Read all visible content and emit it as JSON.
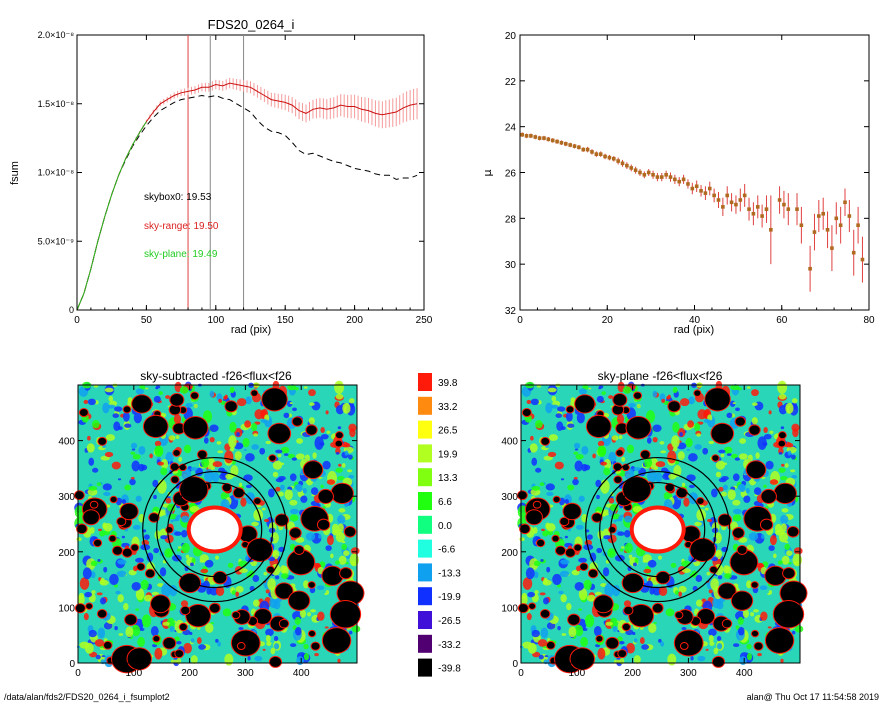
{
  "footer": {
    "path": "/data/alan/fds2/FDS20_0264_i_fsumplot2",
    "stamp": "alan@  Thu Oct 17 11:54:58 2019"
  },
  "colors": {
    "black_profile": "#000000",
    "red_profile": "#cc1111",
    "red_errorbar": "#f59a9a",
    "green_profile": "#22bb22",
    "mu_point": "#b06a20",
    "vertical_red": "#e04040",
    "vertical_gray": "#888888"
  },
  "chart_data": [
    {
      "id": "fsum",
      "type": "line",
      "title": "FDS20_0264_i",
      "xlabel": "rad (pix)",
      "ylabel": "fsum",
      "xlim": [
        0,
        250
      ],
      "ylim": [
        0,
        2e-08
      ],
      "xticks": [
        0,
        50,
        100,
        150,
        200,
        250
      ],
      "xtick_labels": [
        "0",
        "50",
        "100",
        "150",
        "200",
        "250"
      ],
      "yticks": [
        0,
        5e-09,
        1e-08,
        1.5e-08,
        2e-08
      ],
      "ytick_labels": [
        "0",
        "5.0×10⁻⁹",
        "1.0×10⁻⁸",
        "1.5×10⁻⁸",
        "2.0×10⁻⁸"
      ],
      "vlines": [
        {
          "x": 80,
          "color": "#e04040"
        },
        {
          "x": 96,
          "color": "#888888"
        },
        {
          "x": 120,
          "color": "#888888"
        }
      ],
      "annotations": [
        {
          "text": "skybox0: 19.53",
          "color": "#000000"
        },
        {
          "text": "sky-range: 19.50",
          "color": "#dd2222"
        },
        {
          "text": "sky-plane: 19.49",
          "color": "#22cc22"
        }
      ],
      "series": [
        {
          "style": "dashed",
          "color": "#000000",
          "x": [
            0,
            5,
            10,
            15,
            20,
            25,
            30,
            35,
            40,
            45,
            50,
            55,
            60,
            65,
            70,
            75,
            80,
            85,
            90,
            95,
            100,
            105,
            110,
            115,
            120,
            125,
            130,
            135,
            140,
            145,
            150,
            155,
            160,
            165,
            170,
            175,
            180,
            185,
            190,
            195,
            200,
            205,
            210,
            215,
            220,
            225,
            230,
            235,
            240,
            245
          ],
          "y": [
            0,
            1.2e-09,
            3e-09,
            5e-09,
            6.8e-09,
            8.4e-09,
            9.8e-09,
            1.09e-08,
            1.19e-08,
            1.27e-08,
            1.34e-08,
            1.4e-08,
            1.45e-08,
            1.48e-08,
            1.51e-08,
            1.53e-08,
            1.54e-08,
            1.55e-08,
            1.56e-08,
            1.55e-08,
            1.56e-08,
            1.54e-08,
            1.53e-08,
            1.5e-08,
            1.47e-08,
            1.44e-08,
            1.38e-08,
            1.33e-08,
            1.3e-08,
            1.29e-08,
            1.27e-08,
            1.22e-08,
            1.16e-08,
            1.13e-08,
            1.14e-08,
            1.12e-08,
            1.1e-08,
            1.08e-08,
            1.07e-08,
            1.05e-08,
            1.03e-08,
            1.02e-08,
            1.01e-08,
            9.9e-09,
            9.8e-09,
            9.8e-09,
            9.5e-09,
            9.6e-09,
            9.6e-09,
            9.8e-09
          ]
        },
        {
          "style": "solid",
          "color": "#cc1111",
          "error": true,
          "x": [
            0,
            5,
            10,
            15,
            20,
            25,
            30,
            35,
            40,
            45,
            50,
            55,
            60,
            65,
            70,
            75,
            80,
            85,
            90,
            95,
            100,
            105,
            110,
            115,
            120,
            125,
            130,
            135,
            140,
            145,
            150,
            155,
            160,
            165,
            170,
            175,
            180,
            185,
            190,
            195,
            200,
            205,
            210,
            215,
            220,
            225,
            230,
            235,
            240,
            245
          ],
          "y": [
            0,
            1.2e-09,
            3e-09,
            5e-09,
            6.8e-09,
            8.4e-09,
            9.8e-09,
            1.1e-08,
            1.2e-08,
            1.29e-08,
            1.37e-08,
            1.44e-08,
            1.5e-08,
            1.53e-08,
            1.56e-08,
            1.58e-08,
            1.59e-08,
            1.6e-08,
            1.62e-08,
            1.62e-08,
            1.64e-08,
            1.63e-08,
            1.65e-08,
            1.64e-08,
            1.63e-08,
            1.62e-08,
            1.59e-08,
            1.56e-08,
            1.53e-08,
            1.52e-08,
            1.51e-08,
            1.49e-08,
            1.45e-08,
            1.43e-08,
            1.46e-08,
            1.47e-08,
            1.46e-08,
            1.47e-08,
            1.49e-08,
            1.48e-08,
            1.48e-08,
            1.46e-08,
            1.45e-08,
            1.43e-08,
            1.42e-08,
            1.43e-08,
            1.44e-08,
            1.47e-08,
            1.49e-08,
            1.5e-08
          ],
          "err": [
            0,
            1e-11,
            2e-11,
            3e-11,
            4e-11,
            5e-11,
            6e-11,
            8e-11,
            1e-10,
            1.2e-10,
            1.4e-10,
            1.6e-10,
            1.8e-10,
            2e-10,
            2.2e-10,
            2.4e-10,
            2.6e-10,
            2.8e-10,
            3e-10,
            3.2e-10,
            3.4e-10,
            3.6e-10,
            3.8e-10,
            4e-10,
            4.2e-10,
            4.4e-10,
            4.6e-10,
            4.8e-10,
            5e-10,
            5.3e-10,
            5.6e-10,
            5.9e-10,
            6.2e-10,
            6.5e-10,
            6.8e-10,
            7.1e-10,
            7.4e-10,
            7.7e-10,
            8e-10,
            8.3e-10,
            8.6e-10,
            8.9e-10,
            9.2e-10,
            9.5e-10,
            9.8e-10,
            1.01e-09,
            1.04e-09,
            1.07e-09,
            1.1e-09,
            1.13e-09
          ]
        },
        {
          "style": "solid",
          "color": "#22bb22",
          "x": [
            0,
            5,
            10,
            15,
            20,
            25,
            30,
            35,
            40,
            45,
            50
          ],
          "y": [
            0,
            1.2e-09,
            3e-09,
            5e-09,
            6.8e-09,
            8.4e-09,
            9.8e-09,
            1.1e-08,
            1.2e-08,
            1.29e-08,
            1.37e-08
          ]
        }
      ]
    },
    {
      "id": "mu",
      "type": "scatter",
      "title": "",
      "xlabel": "rad (pix)",
      "ylabel": "μ",
      "xlim": [
        0,
        80
      ],
      "ylim": [
        32,
        20
      ],
      "xticks": [
        0,
        20,
        40,
        60,
        80
      ],
      "xtick_labels": [
        "0",
        "20",
        "40",
        "60",
        "80"
      ],
      "yticks": [
        20,
        22,
        24,
        26,
        28,
        30,
        32
      ],
      "ytick_labels": [
        "20",
        "22",
        "24",
        "26",
        "28",
        "30",
        "32"
      ],
      "points": [
        [
          0.5,
          24.35,
          0.1
        ],
        [
          1.5,
          24.4,
          0.1
        ],
        [
          2.5,
          24.4,
          0.1
        ],
        [
          3.5,
          24.45,
          0.1
        ],
        [
          4.5,
          24.5,
          0.1
        ],
        [
          5.5,
          24.5,
          0.1
        ],
        [
          6.5,
          24.55,
          0.1
        ],
        [
          7.5,
          24.6,
          0.1
        ],
        [
          8.5,
          24.65,
          0.1
        ],
        [
          9.5,
          24.7,
          0.1
        ],
        [
          10.5,
          24.75,
          0.1
        ],
        [
          11.5,
          24.8,
          0.1
        ],
        [
          12.5,
          24.85,
          0.1
        ],
        [
          13.5,
          24.9,
          0.1
        ],
        [
          14.5,
          25.0,
          0.1
        ],
        [
          15.5,
          25.0,
          0.12
        ],
        [
          16.5,
          25.1,
          0.12
        ],
        [
          17.5,
          25.2,
          0.12
        ],
        [
          18.5,
          25.2,
          0.12
        ],
        [
          19.5,
          25.3,
          0.12
        ],
        [
          20.5,
          25.35,
          0.12
        ],
        [
          21.5,
          25.4,
          0.12
        ],
        [
          22.5,
          25.5,
          0.15
        ],
        [
          23.5,
          25.6,
          0.15
        ],
        [
          24.5,
          25.7,
          0.15
        ],
        [
          25.5,
          25.8,
          0.15
        ],
        [
          26.5,
          25.9,
          0.15
        ],
        [
          27.5,
          26.0,
          0.15
        ],
        [
          28.5,
          26.1,
          0.15
        ],
        [
          29.5,
          26.0,
          0.15
        ],
        [
          30.5,
          26.1,
          0.18
        ],
        [
          31.5,
          26.2,
          0.18
        ],
        [
          32.5,
          26.2,
          0.18
        ],
        [
          33.5,
          26.1,
          0.18
        ],
        [
          34.5,
          26.2,
          0.2
        ],
        [
          35.5,
          26.3,
          0.2
        ],
        [
          36.5,
          26.4,
          0.2
        ],
        [
          37.5,
          26.3,
          0.2
        ],
        [
          38.5,
          26.5,
          0.2
        ],
        [
          39.5,
          26.7,
          0.25
        ],
        [
          40.5,
          26.6,
          0.25
        ],
        [
          41.5,
          26.8,
          0.25
        ],
        [
          42.5,
          26.9,
          0.3
        ],
        [
          43.5,
          26.7,
          0.3
        ],
        [
          44.5,
          27.0,
          0.3
        ],
        [
          45.5,
          27.2,
          0.35
        ],
        [
          46.5,
          27.5,
          0.4
        ],
        [
          47.5,
          27.0,
          0.4
        ],
        [
          48.5,
          27.3,
          0.4
        ],
        [
          49.5,
          27.4,
          0.4
        ],
        [
          50.5,
          27.2,
          0.5
        ],
        [
          51.5,
          27.0,
          0.5
        ],
        [
          52.5,
          27.6,
          0.5
        ],
        [
          53.5,
          27.8,
          0.5
        ],
        [
          54.5,
          27.5,
          0.5
        ],
        [
          55.5,
          27.9,
          0.5
        ],
        [
          56.5,
          27.6,
          0.6
        ],
        [
          57.5,
          28.5,
          1.5
        ],
        [
          59.5,
          27.2,
          0.6
        ],
        [
          60.5,
          27.4,
          0.6
        ],
        [
          61.5,
          27.6,
          0.7
        ],
        [
          63.5,
          27.6,
          0.7
        ],
        [
          64.5,
          28.3,
          0.8
        ],
        [
          66.5,
          30.2,
          1.0
        ],
        [
          67.5,
          28.6,
          0.8
        ],
        [
          68.5,
          27.9,
          0.7
        ],
        [
          69.5,
          27.8,
          0.7
        ],
        [
          70.5,
          28.5,
          0.8
        ],
        [
          71.5,
          29.3,
          1.0
        ],
        [
          72.5,
          28.0,
          0.7
        ],
        [
          73.5,
          28.3,
          0.8
        ],
        [
          74.5,
          27.3,
          0.6
        ],
        [
          75.5,
          27.9,
          0.7
        ],
        [
          76.5,
          29.5,
          1.0
        ],
        [
          77.5,
          28.3,
          0.8
        ],
        [
          78.5,
          29.8,
          1.0
        ]
      ]
    },
    {
      "id": "map_left",
      "type": "heatmap",
      "title": "sky-subtracted -f26<flux<f26",
      "xlim": [
        0,
        500
      ],
      "ylim": [
        0,
        500
      ],
      "xticks": [
        0,
        100,
        200,
        300,
        400
      ],
      "xtick_labels": [
        "0",
        "100",
        "200",
        "300",
        "400"
      ],
      "yticks": [
        0,
        100,
        200,
        300,
        400
      ],
      "ytick_labels": [
        "0",
        "100",
        "200",
        "300",
        "400"
      ]
    },
    {
      "id": "map_right",
      "type": "heatmap",
      "title": "sky-plane -f26<flux<f26",
      "xlim": [
        0,
        500
      ],
      "ylim": [
        0,
        500
      ],
      "xticks": [
        0,
        100,
        200,
        300,
        400
      ],
      "xtick_labels": [
        "0",
        "100",
        "200",
        "300",
        "400"
      ],
      "yticks": [
        0,
        100,
        200,
        300,
        400
      ],
      "ytick_labels": [
        "0",
        "100",
        "200",
        "300",
        "400"
      ]
    },
    {
      "id": "colorbar",
      "type": "table",
      "levels": [
        "39.8",
        "33.2",
        "26.5",
        "19.9",
        "13.3",
        "6.6",
        "0.0",
        "-6.6",
        "-13.3",
        "-19.9",
        "-26.5",
        "-33.2",
        "-39.8"
      ],
      "colors": [
        "#ff1a0a",
        "#ff8a10",
        "#ffff10",
        "#b0ff20",
        "#80ff10",
        "#20ff10",
        "#10ff80",
        "#20ffe0",
        "#10a0f0",
        "#1030ff",
        "#4010d8",
        "#500070",
        "#000000"
      ]
    }
  ]
}
